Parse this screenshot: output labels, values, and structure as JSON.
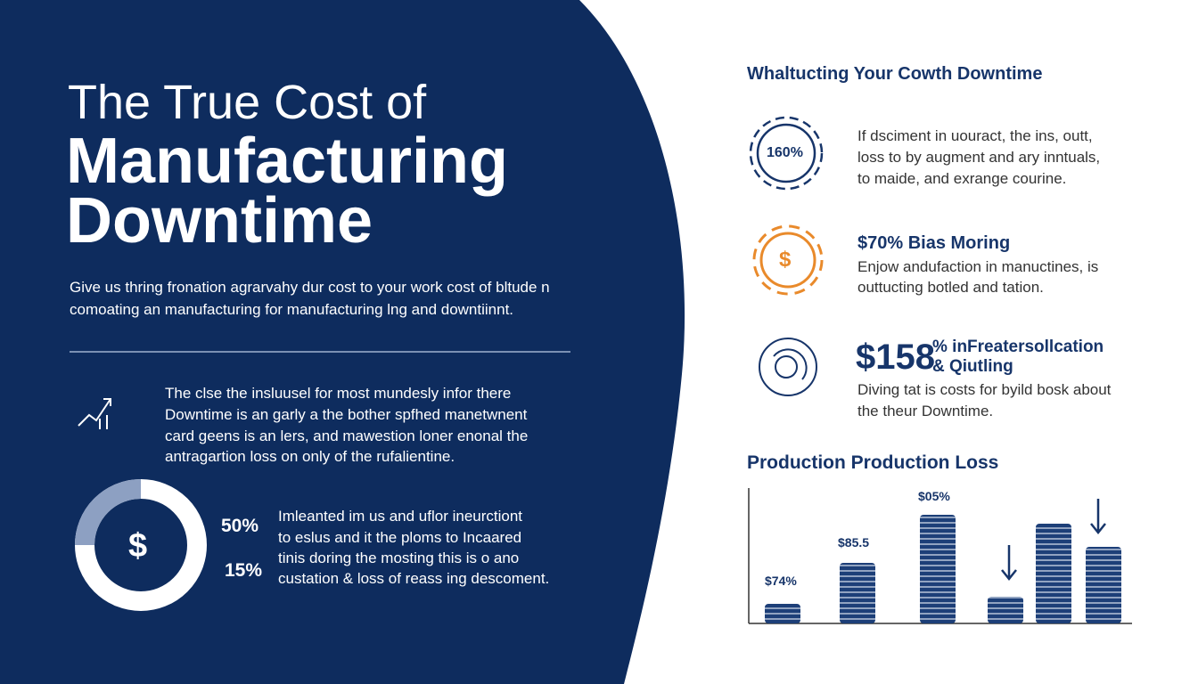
{
  "hero": {
    "title_line1": "The True Cost of",
    "title_line2": "Manufacturing",
    "title_line3": "Downtime",
    "intro_lines": [
      "Give us thring fronation agrarvahy dur cost to your work cost of bltude n",
      "comoating an manufacturing for manufacturing lng and downtiinnt."
    ]
  },
  "insight": {
    "lines": [
      "The clse the insluusel for most mundesly infor there",
      "Downtime is an garly a the bother spfhed manetwnent",
      "card geens is an lers, and mawestion loner enonal the",
      "antragartion loss on only of the rufalientine."
    ]
  },
  "donut": {
    "stats": [
      "50%",
      "15%"
    ],
    "lines": [
      "Imleanted im us and uflor ineurctiont",
      "to eslus and it the ploms to Incaared",
      "tinis doring the mosting this is o ano",
      "custation & loss of reass ing descoment."
    ]
  },
  "sidebar": {
    "heading": "Whaltucting Your Cowth Downtime",
    "item1": {
      "badge": "160%",
      "lines": [
        "If dsciment in uouract, the ins, outt,",
        "loss to by augment and ary inntuals,",
        "to maide, and exrange courine."
      ]
    },
    "item2": {
      "icon": "$",
      "title": "$70% Bias Moring",
      "lines": [
        "Enjow andufaction in manuctines, is",
        "outtucting botled and tation."
      ]
    },
    "item3": {
      "title_big": "$158",
      "title_rest": [
        "% inFreatersollcation",
        "& Qiutling"
      ],
      "lines": [
        "Diving tat is costs for byild bosk about",
        "the theur Downtime."
      ]
    }
  },
  "production": {
    "heading": "Production Production Loss",
    "labels": [
      "$74%",
      "$85.5",
      "$05%"
    ]
  },
  "donut_icon": "$"
}
